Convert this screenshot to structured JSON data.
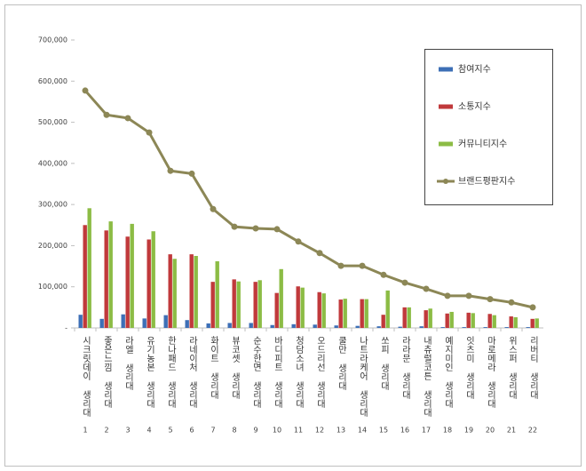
{
  "chart_data": {
    "type": "bar",
    "categories": [
      "시크릿데이 생리대",
      "좋은느낌 생리대",
      "라엘 생리대",
      "유기농본 생리대",
      "한나패드 생리대",
      "라네이처 생리대",
      "화이트 생리대",
      "뷰코셋 생리대",
      "순수한면 생리대",
      "바디피트 생리대",
      "청담소녀 생리대",
      "오드리선 생리대",
      "쿨만 생리대",
      "나트라케어 생리대",
      "쏘피 생리대",
      "라라문 생리대",
      "내츄럴코튼 생리대",
      "예지미인 생리대",
      "잇츠미 생리대",
      "마로메라 생리대",
      "위스퍼 생리대",
      "리버티 생리대"
    ],
    "ranks": [
      1,
      2,
      3,
      4,
      5,
      6,
      7,
      8,
      9,
      10,
      11,
      12,
      13,
      14,
      15,
      16,
      17,
      18,
      19,
      20,
      21,
      22
    ],
    "series": [
      {
        "name": "참여지수",
        "type": "bar",
        "color": "#3d6fb6",
        "values": [
          32000,
          22000,
          33000,
          23000,
          31000,
          19000,
          11000,
          12000,
          12000,
          7000,
          9000,
          8000,
          6000,
          5000,
          4000,
          3000,
          4000,
          2000,
          2000,
          2000,
          2000,
          2000
        ]
      },
      {
        "name": "소통지수",
        "type": "bar",
        "color": "#c0393b",
        "values": [
          250000,
          237000,
          222000,
          215000,
          179000,
          179000,
          112000,
          118000,
          112000,
          85000,
          101000,
          87000,
          69000,
          70000,
          32000,
          50000,
          43000,
          35000,
          37000,
          34000,
          28000,
          22000
        ]
      },
      {
        "name": "커뮤니티지수",
        "type": "bar",
        "color": "#8cbc45",
        "values": [
          291000,
          259000,
          253000,
          235000,
          168000,
          175000,
          162000,
          113000,
          116000,
          143000,
          98000,
          84000,
          71000,
          70000,
          91000,
          50000,
          47000,
          39000,
          36000,
          31000,
          26000,
          23000
        ]
      },
      {
        "name": "브랜드평판지수",
        "type": "line",
        "color": "#8c8756",
        "values": [
          577000,
          518000,
          510000,
          475000,
          382000,
          375000,
          289000,
          246000,
          242000,
          240000,
          210000,
          182000,
          151000,
          151000,
          129000,
          110000,
          95000,
          78000,
          78000,
          70000,
          62000,
          50000
        ]
      }
    ],
    "ylim": [
      0,
      700000
    ],
    "yticks": [
      {
        "value": 0,
        "label": "-"
      },
      {
        "value": 100000,
        "label": "100,000"
      },
      {
        "value": 200000,
        "label": "200,000"
      },
      {
        "value": 300000,
        "label": "300,000"
      },
      {
        "value": 400000,
        "label": "400,000"
      },
      {
        "value": 500000,
        "label": "500,000"
      },
      {
        "value": 600000,
        "label": "600,000"
      },
      {
        "value": 700000,
        "label": "700,000"
      }
    ],
    "grid": false,
    "legend": "upper-right"
  }
}
